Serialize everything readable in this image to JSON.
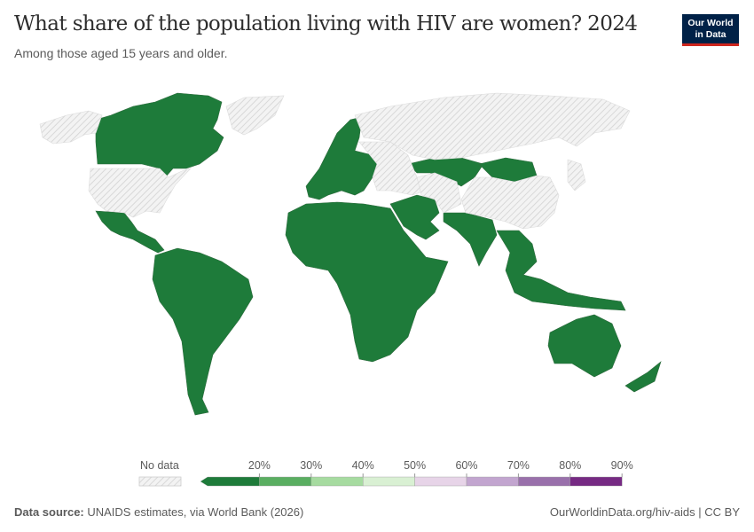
{
  "header": {
    "title": "What share of the population living with HIV are women? 2024",
    "subtitle": "Among those aged 15 years and older.",
    "logo_line1": "Our World",
    "logo_line2": "in Data"
  },
  "footer": {
    "source_label": "Data source:",
    "source_text": " UNAIDS estimates, via World Bank (2026)",
    "url": "OurWorldinData.org/hiv-aids | CC BY"
  },
  "chart_data": {
    "type": "choropleth-map",
    "title": "What share of the population living with HIV are women? 2024",
    "subtitle": "Among those aged 15 years and older.",
    "year": 2024,
    "unit": "%",
    "legend": {
      "no_data_label": "No data",
      "bins": [
        {
          "label": "<20%",
          "color": "#1e7b3a"
        },
        {
          "label": "20%–30%",
          "color": "#5aae61"
        },
        {
          "label": "30%–40%",
          "color": "#a6dba0"
        },
        {
          "label": "40%–50%",
          "color": "#d9f0d3"
        },
        {
          "label": "50%–60%",
          "color": "#e7d4e8"
        },
        {
          "label": "60%–70%",
          "color": "#c2a5cf"
        },
        {
          "label": "70%–80%",
          "color": "#9970ab"
        },
        {
          "label": "80%–90%",
          "color": "#762a83"
        }
      ],
      "tick_labels": [
        "20%",
        "30%",
        "40%",
        "50%",
        "60%",
        "70%",
        "80%",
        "90%"
      ]
    },
    "regions": [
      {
        "name": "Canada & Greenland-adjacent Arctic",
        "bin": "<20%"
      },
      {
        "name": "Mexico & Central America",
        "bin": "<20%"
      },
      {
        "name": "South America",
        "bin": "<20%"
      },
      {
        "name": "Western & Central Europe",
        "bin": "<20%"
      },
      {
        "name": "Africa",
        "bin": "<20%"
      },
      {
        "name": "Middle East",
        "bin": "<20%"
      },
      {
        "name": "Kazakhstan & Central Asia",
        "bin": "<20%"
      },
      {
        "name": "Mongolia",
        "bin": "<20%"
      },
      {
        "name": "South Asia",
        "bin": "<20%"
      },
      {
        "name": "Southeast Asia",
        "bin": "<20%"
      },
      {
        "name": "Australia & New Zealand",
        "bin": "<20%"
      },
      {
        "name": "United States",
        "bin": "No data"
      },
      {
        "name": "Alaska",
        "bin": "No data"
      },
      {
        "name": "Greenland",
        "bin": "No data"
      },
      {
        "name": "Russia",
        "bin": "No data"
      },
      {
        "name": "China",
        "bin": "No data"
      },
      {
        "name": "Japan & Korea",
        "bin": "No data"
      },
      {
        "name": "Eastern Europe & Turkey",
        "bin": "No data"
      },
      {
        "name": "Iran & Turkmenistan",
        "bin": "No data"
      }
    ],
    "colors": {
      "no_data_fill": "#f0f0f0",
      "no_data_stripe": "#d6d6d6",
      "border": "#555555"
    }
  }
}
